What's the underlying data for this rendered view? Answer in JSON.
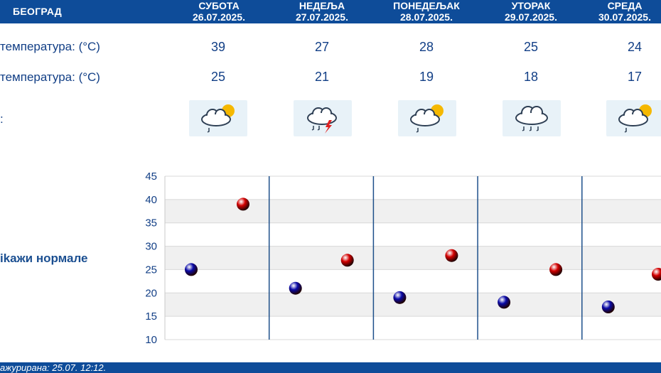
{
  "header": {
    "city": "БЕОГРАД",
    "days": [
      {
        "name": "СУБОТА",
        "date": "26.07.2025."
      },
      {
        "name": "НЕДЕЉА",
        "date": "27.07.2025."
      },
      {
        "name": "ПОНЕДЕЉАК",
        "date": "28.07.2025."
      },
      {
        "name": "УТОРАК",
        "date": "29.07.2025."
      },
      {
        "name": "СРЕДА",
        "date": "30.07.2025."
      }
    ]
  },
  "rows": {
    "max_label": "температура: (°C)",
    "min_label": "температура: (°C)",
    "weather_label": ":"
  },
  "max_temps": [
    "39",
    "27",
    "28",
    "25",
    "24"
  ],
  "min_temps": [
    "25",
    "21",
    "19",
    "18",
    "17"
  ],
  "weather_icons": [
    "partly-cloudy-rain-icon",
    "thunderstorm-icon",
    "partly-cloudy-rain-icon",
    "rain-cloud-icon",
    "partly-cloudy-rain-icon"
  ],
  "normals_link": "ikажи нормале",
  "footer": {
    "updated": "ажурирана:  25.07. 12:12."
  },
  "colors": {
    "header_bg": "#0e4c99",
    "max_point": "#d40000",
    "min_point": "#0a0aa8",
    "text": "#123f86"
  },
  "chart_data": {
    "type": "scatter",
    "ylim": [
      10,
      45
    ],
    "yticks": [
      10,
      15,
      20,
      25,
      30,
      35,
      40,
      45
    ],
    "grid": true,
    "series": [
      {
        "values": [
          25,
          21,
          19,
          18,
          17
        ],
        "color": "#0a0aa8"
      },
      {
        "values": [
          39,
          27,
          28,
          25,
          24
        ],
        "color": "#d40000"
      }
    ]
  }
}
